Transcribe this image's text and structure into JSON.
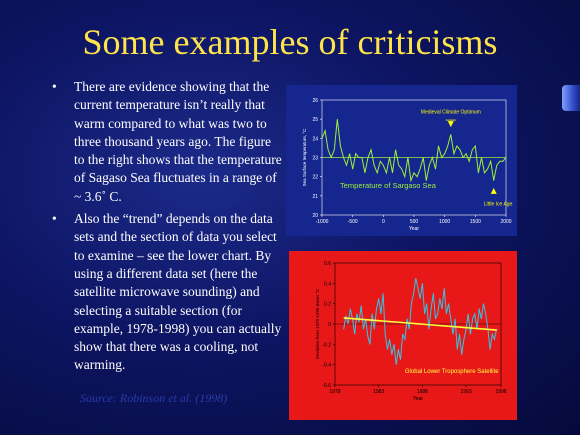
{
  "slide": {
    "title": "Some examples of criticisms",
    "bullets": [
      "There are evidence showing that the current temperature isn’t really that warm compared to what was two to three thousand years ago. The figure to the right shows that the temperature of Sagaso Sea fluctuates in a range of ~ 3.6˚ C.",
      "Also the “trend” depends on the data sets and the section of data you select to examine – see the lower chart. By using a different data set (here the satellite microwave sounding) and selecting a suitable section (for example, 1978-1998) you can actually show that there was a cooling, not warming."
    ],
    "bullet_marker": "•",
    "source": "Source: Robinson et al. (1998)"
  },
  "colors": {
    "title": "#ffe34a",
    "chart1_bg": "#16268f",
    "chart1_line": "#9cf03a",
    "chart1_annot": "#ffff00",
    "chart2_bg": "#e81818",
    "chart2_line": "#33c6e6",
    "chart2_trend": "#ffff40"
  },
  "chart_data": [
    {
      "type": "line",
      "ylabel": "Sea Surface temperature, °C",
      "xlabel": "Year",
      "xlim": [
        -1000,
        2000
      ],
      "ylim": [
        20,
        26
      ],
      "x_ticks": [
        -1000,
        -500,
        0,
        500,
        1000,
        1500,
        2000
      ],
      "x_tick_labels": [
        "-1000",
        "-500",
        "0",
        "500",
        "1000",
        "1500",
        "2000"
      ],
      "y_ticks": [
        20,
        21,
        22,
        23,
        24,
        25,
        26
      ],
      "y_tick_labels": [
        "20",
        "21",
        "22",
        "23",
        "24",
        "25",
        "26"
      ],
      "reference_line": 23,
      "series": [
        {
          "name": "",
          "x": [
            -1000,
            -950,
            -900,
            -850,
            -800,
            -750,
            -700,
            -650,
            -600,
            -550,
            -500,
            -450,
            -400,
            -350,
            -300,
            -250,
            -200,
            -150,
            -100,
            -50,
            0,
            50,
            100,
            150,
            200,
            250,
            300,
            350,
            400,
            450,
            500,
            550,
            600,
            650,
            700,
            750,
            800,
            850,
            900,
            950,
            1000,
            1050,
            1100,
            1150,
            1200,
            1250,
            1300,
            1350,
            1400,
            1450,
            1500,
            1550,
            1600,
            1650,
            1700,
            1750,
            1800,
            1850,
            1900,
            1950,
            2000
          ],
          "values": [
            24.0,
            24.4,
            23.4,
            23.0,
            23.4,
            25.0,
            23.6,
            23.0,
            22.6,
            23.2,
            22.4,
            23.2,
            23.0,
            23.0,
            22.2,
            23.0,
            23.4,
            22.6,
            22.2,
            22.8,
            22.6,
            22.2,
            23.0,
            22.2,
            23.4,
            22.6,
            22.4,
            22.0,
            23.0,
            21.8,
            22.2,
            22.0,
            22.4,
            23.0,
            21.8,
            22.6,
            23.0,
            22.4,
            23.6,
            23.0,
            23.2,
            23.6,
            24.2,
            23.2,
            23.6,
            23.4,
            23.0,
            23.2,
            22.8,
            23.4,
            23.6,
            22.2,
            23.0,
            22.2,
            22.4,
            22.8,
            21.8,
            22.6,
            22.8,
            22.8,
            23.0
          ]
        }
      ],
      "annotations": [
        {
          "text": "Medieval Climate Optimum",
          "x": 1100,
          "y": 24.5
        },
        {
          "text": "Little Ice Age",
          "x": 1800,
          "y": 21.3
        },
        {
          "text": "Temperature of Sargaso Sea",
          "x": 100,
          "y": 21.5
        }
      ]
    },
    {
      "type": "line",
      "ylabel": "Deviation from 1979-1996 mean °C",
      "xlabel": "Year",
      "xlim": [
        1978,
        1997
      ],
      "ylim": [
        -0.6,
        0.6
      ],
      "x_ticks": [
        1978,
        1983,
        1988,
        1993,
        1998
      ],
      "x_tick_labels": [
        "1978",
        "1983",
        "1988",
        "1993",
        "1998"
      ],
      "y_ticks": [
        -0.6,
        -0.4,
        -0.2,
        0.0,
        0.2,
        0.4,
        0.6
      ],
      "y_tick_labels": [
        "-0.6",
        "-0.4",
        "-0.2",
        "0",
        "0.2",
        "0.4",
        "0.6"
      ],
      "trend": {
        "start": [
          1979,
          0.06
        ],
        "end": [
          1996.5,
          -0.06
        ]
      },
      "series": [
        {
          "name": "",
          "x": [
            1979.0,
            1979.25,
            1979.5,
            1979.75,
            1980.0,
            1980.25,
            1980.5,
            1980.75,
            1981.0,
            1981.25,
            1981.5,
            1981.75,
            1982.0,
            1982.25,
            1982.5,
            1982.75,
            1983.0,
            1983.25,
            1983.5,
            1983.75,
            1984.0,
            1984.25,
            1984.5,
            1984.75,
            1985.0,
            1985.25,
            1985.5,
            1985.75,
            1986.0,
            1986.25,
            1986.5,
            1986.75,
            1987.0,
            1987.25,
            1987.5,
            1987.75,
            1988.0,
            1988.25,
            1988.5,
            1988.75,
            1989.0,
            1989.25,
            1989.5,
            1989.75,
            1990.0,
            1990.25,
            1990.5,
            1990.75,
            1991.0,
            1991.25,
            1991.5,
            1991.75,
            1992.0,
            1992.25,
            1992.5,
            1992.75,
            1993.0,
            1993.25,
            1993.5,
            1993.75,
            1994.0,
            1994.25,
            1994.5,
            1994.75,
            1995.0,
            1995.25,
            1995.5,
            1995.75,
            1996.0,
            1996.25,
            1996.5
          ],
          "values": [
            -0.05,
            0.08,
            0.0,
            0.15,
            0.05,
            -0.1,
            0.1,
            0.02,
            0.18,
            -0.05,
            0.05,
            -0.12,
            -0.2,
            0.1,
            -0.05,
            0.15,
            0.25,
            0.1,
            0.3,
            -0.1,
            -0.25,
            -0.15,
            -0.3,
            -0.2,
            -0.4,
            -0.25,
            -0.35,
            -0.1,
            -0.15,
            0.05,
            -0.05,
            0.2,
            0.3,
            0.45,
            0.35,
            0.25,
            0.4,
            0.1,
            0.2,
            -0.05,
            0.15,
            0.3,
            0.05,
            0.1,
            0.25,
            0.15,
            0.35,
            0.1,
            0.2,
            0.05,
            -0.1,
            0.05,
            -0.25,
            -0.1,
            -0.3,
            -0.15,
            -0.05,
            0.1,
            -0.1,
            0.05,
            0.1,
            -0.05,
            0.15,
            0.05,
            0.2,
            0.1,
            -0.05,
            -0.25,
            -0.1,
            -0.15,
            -0.05
          ]
        }
      ],
      "annotations": [
        {
          "text": "Global Lower Troposphere Satellite",
          "x": 1986,
          "y": -0.48
        }
      ]
    }
  ]
}
